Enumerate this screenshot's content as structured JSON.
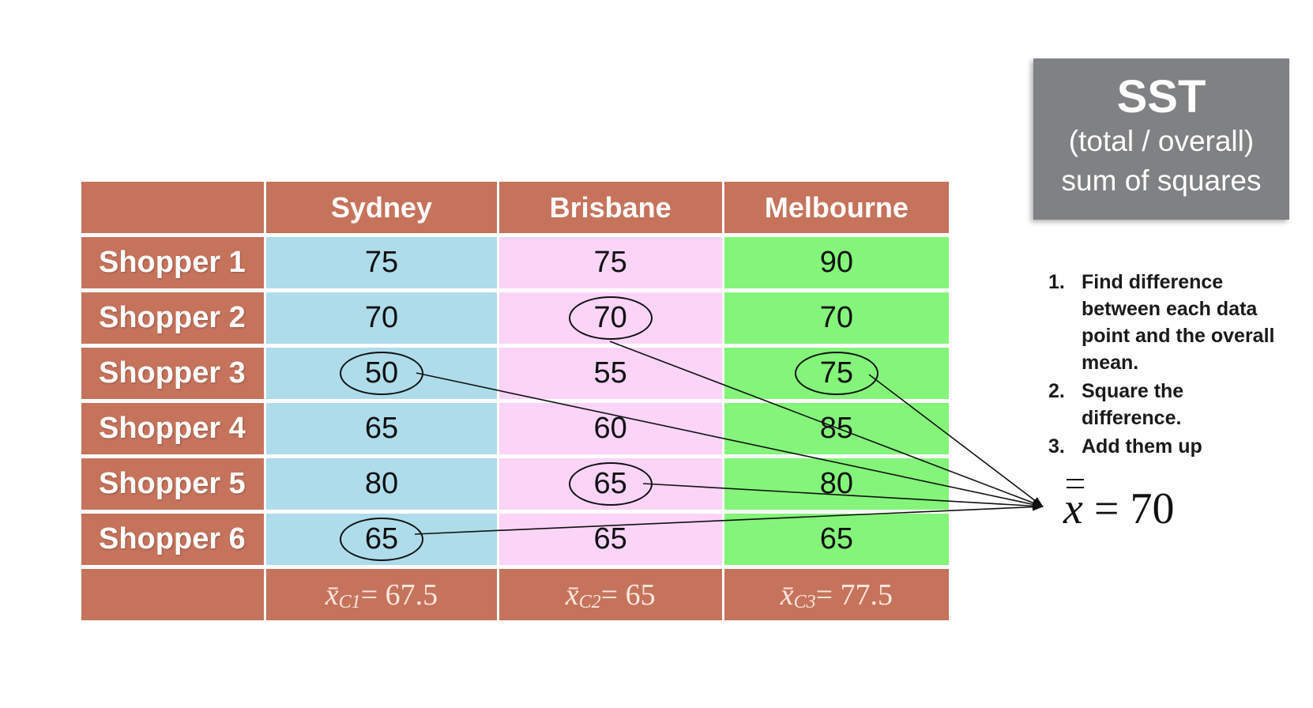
{
  "table": {
    "columns": [
      "",
      "Sydney",
      "Brisbane",
      "Melbourne"
    ],
    "rows": [
      {
        "label": "Shopper 1",
        "values": [
          "75",
          "75",
          "90"
        ]
      },
      {
        "label": "Shopper 2",
        "values": [
          "70",
          "70",
          "70"
        ]
      },
      {
        "label": "Shopper 3",
        "values": [
          "50",
          "55",
          "75"
        ]
      },
      {
        "label": "Shopper 4",
        "values": [
          "65",
          "60",
          "85"
        ]
      },
      {
        "label": "Shopper 5",
        "values": [
          "80",
          "65",
          "80"
        ]
      },
      {
        "label": "Shopper 6",
        "values": [
          "65",
          "65",
          "65"
        ]
      }
    ],
    "footer": [
      {
        "var": "x̄",
        "sub": "C1",
        "eq": " = 67.5"
      },
      {
        "var": "x̄",
        "sub": "C2",
        "eq": " = 65"
      },
      {
        "var": "x̄",
        "sub": "C3",
        "eq": " = 77.5"
      }
    ]
  },
  "sst_box": {
    "title": "SST",
    "line1": "(total / overall)",
    "line2": "sum of squares"
  },
  "steps": [
    {
      "num": "1.",
      "text": "Find difference between each data point and the overall mean."
    },
    {
      "num": "2.",
      "text": "Square the difference."
    },
    {
      "num": "3.",
      "text": "Add them up"
    }
  ],
  "grand_mean": {
    "symbol": "x",
    "eq": " = 70"
  },
  "colors": {
    "header": "#c6735c",
    "sydney": "#aedcea",
    "brisbane": "#fbd4f8",
    "melbourne": "#84f57a",
    "sst_box": "#7f8183"
  }
}
